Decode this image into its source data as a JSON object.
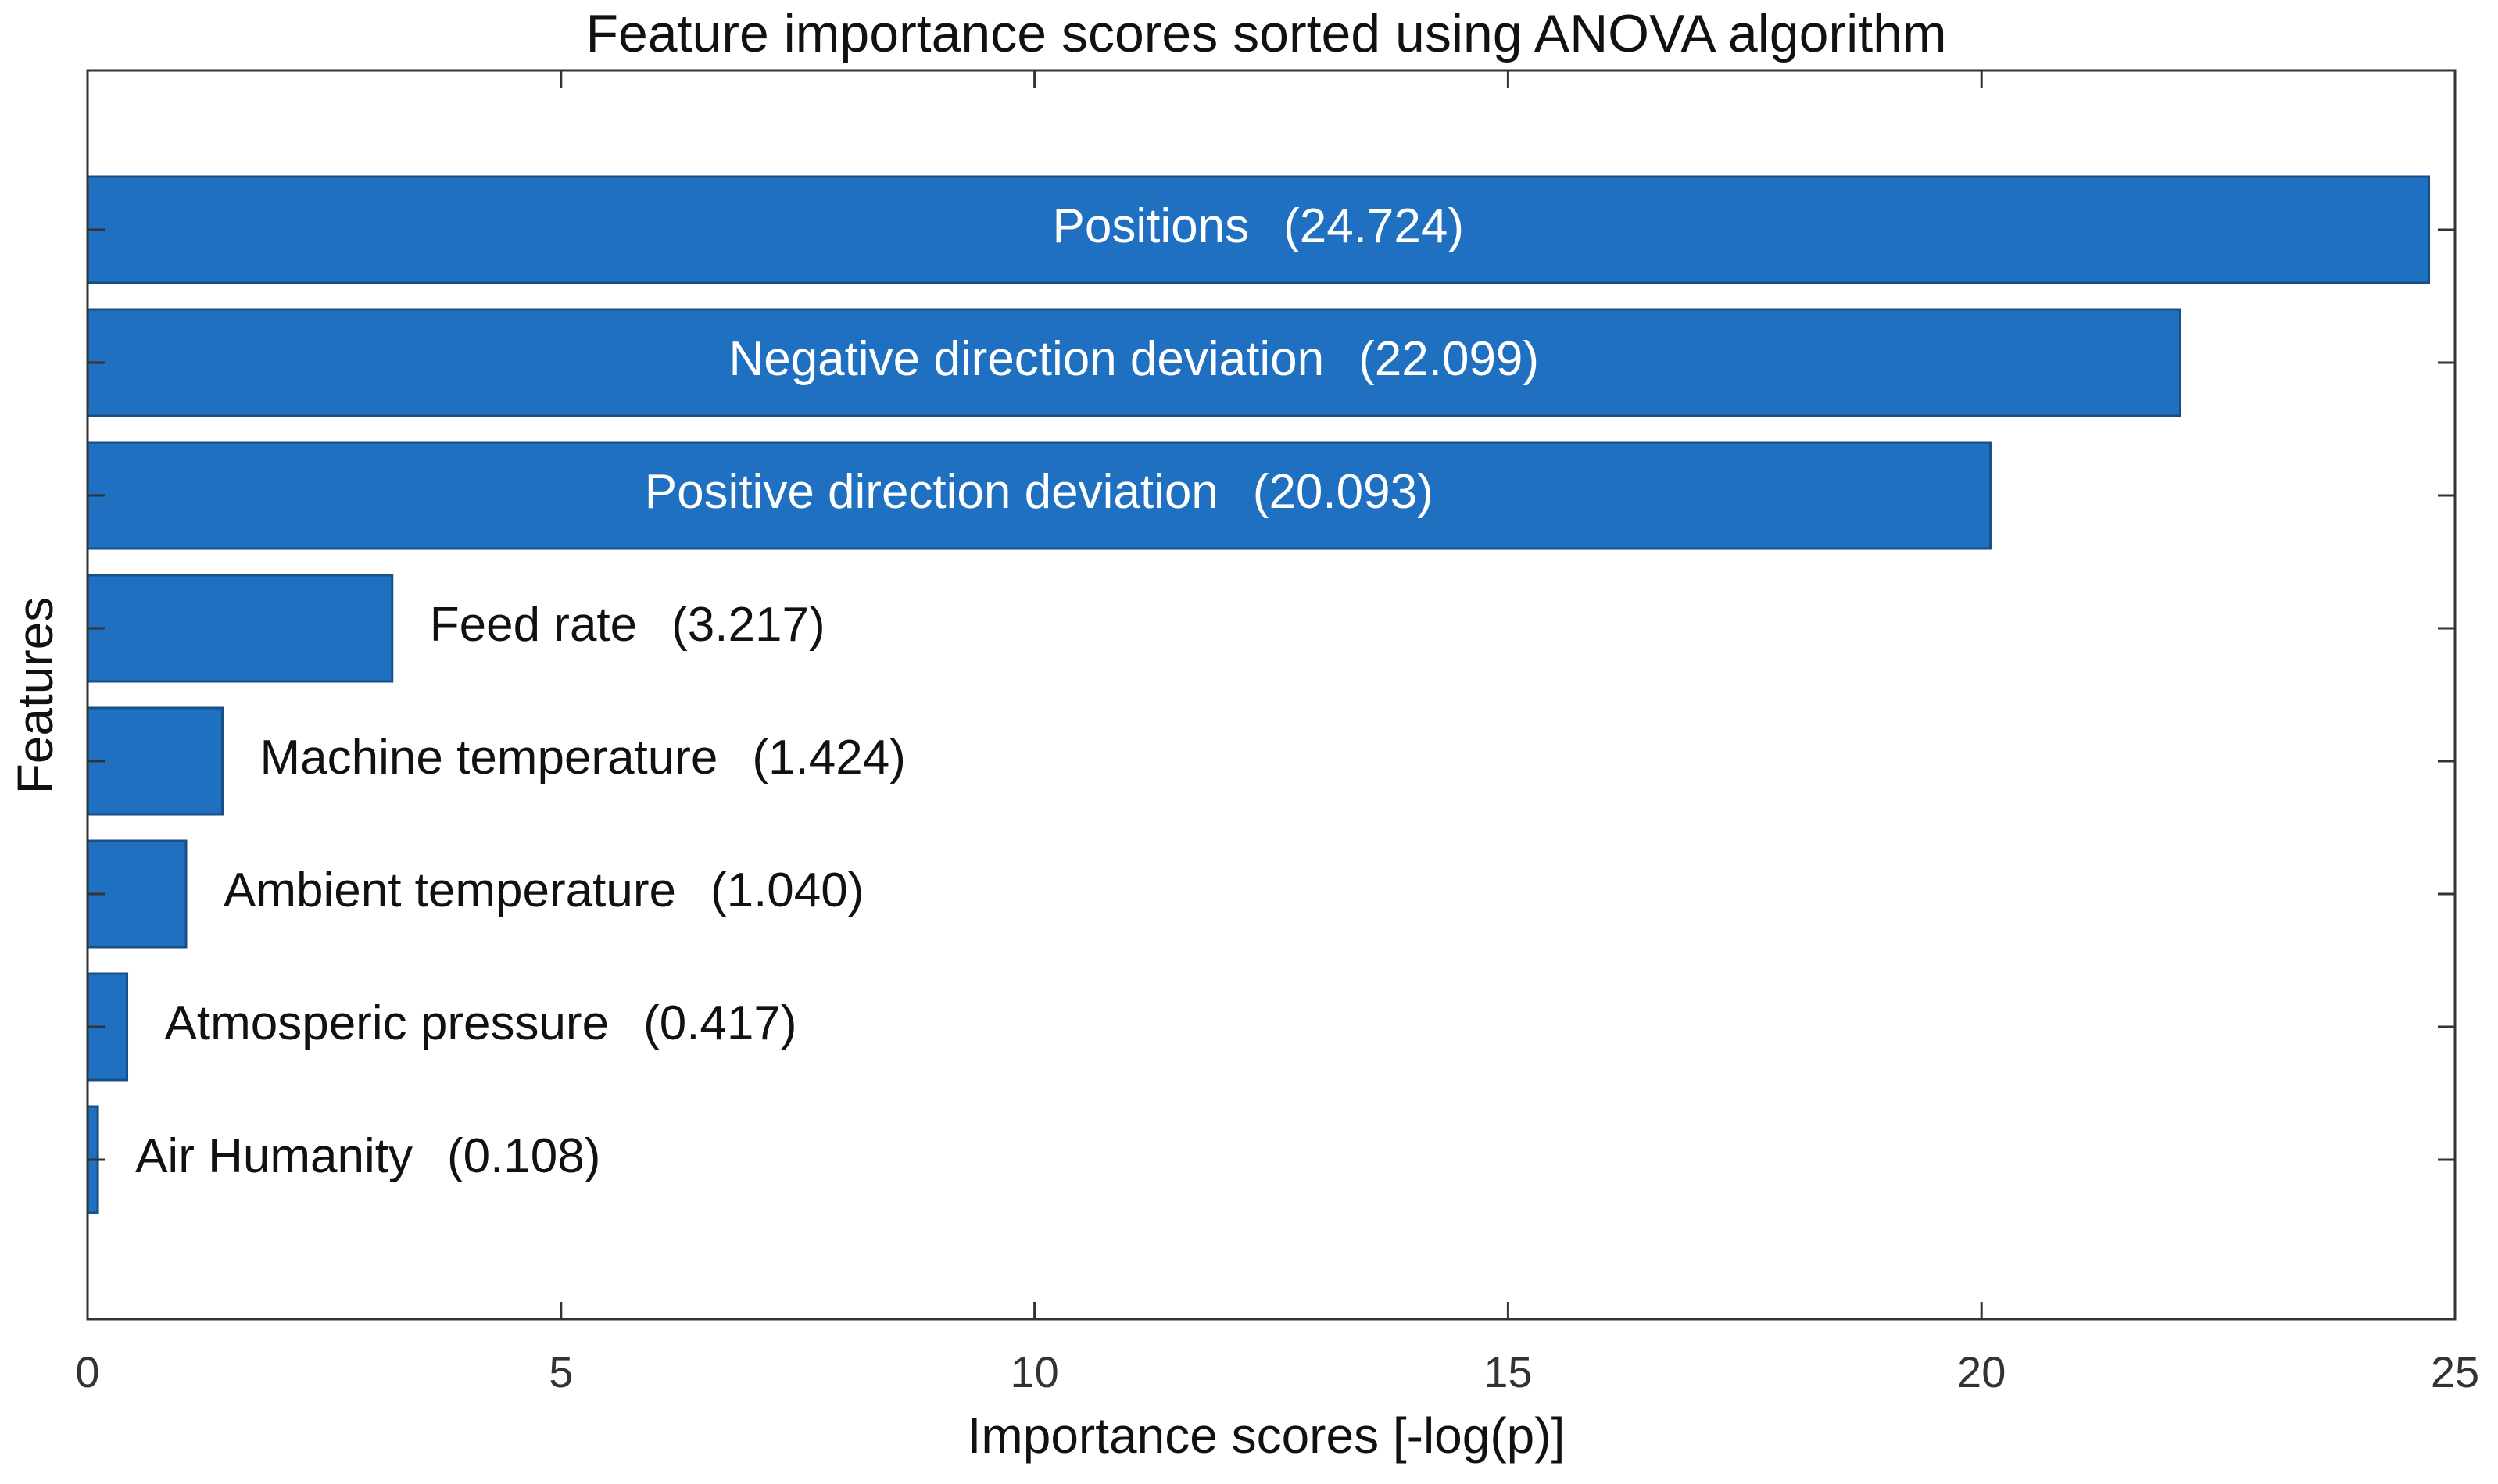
{
  "chart_data": {
    "type": "barh",
    "title": "Feature importance scores sorted using ANOVA algorithm",
    "xlabel": "Importance scores [-log(p)]",
    "ylabel": "Features",
    "categories": [
      "Positions",
      "Negative direction deviation",
      "Positive direction deviation",
      "Feed rate",
      "Machine temperature",
      "Ambient temperature",
      "Atmosperic pressure",
      "Air Humanity"
    ],
    "values": [
      24.724,
      22.099,
      20.093,
      3.217,
      1.424,
      1.04,
      0.417,
      0.108
    ],
    "value_labels": [
      "(24.724)",
      "(22.099)",
      "(20.093)",
      "(3.217)",
      "(1.424)",
      "(1.040)",
      "(0.417)",
      "(0.108)"
    ],
    "color": "#1f70c1",
    "xlim": [
      0,
      25
    ],
    "xticks": [
      0,
      5,
      10,
      15,
      20,
      25
    ]
  }
}
